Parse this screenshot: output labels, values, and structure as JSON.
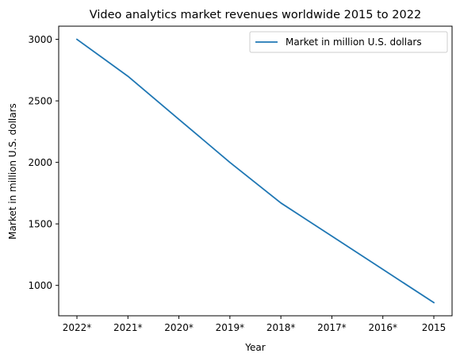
{
  "chart_data": {
    "type": "line",
    "title": "Video analytics market revenues worldwide 2015 to 2022",
    "xlabel": "Year",
    "ylabel": "Market in million U.S. dollars",
    "categories": [
      "2022*",
      "2021*",
      "2020*",
      "2019*",
      "2018*",
      "2017*",
      "2016*",
      "2015"
    ],
    "series": [
      {
        "name": "Market in million U.S. dollars",
        "values": [
          3000,
          2700,
          2350,
          2000,
          1670,
          1400,
          1130,
          860
        ],
        "color": "#1f77b4"
      }
    ],
    "yticks": [
      1000,
      1500,
      2000,
      2500,
      3000
    ],
    "ylim": [
      753,
      3107
    ],
    "grid": false,
    "legend_position": "top-right"
  }
}
